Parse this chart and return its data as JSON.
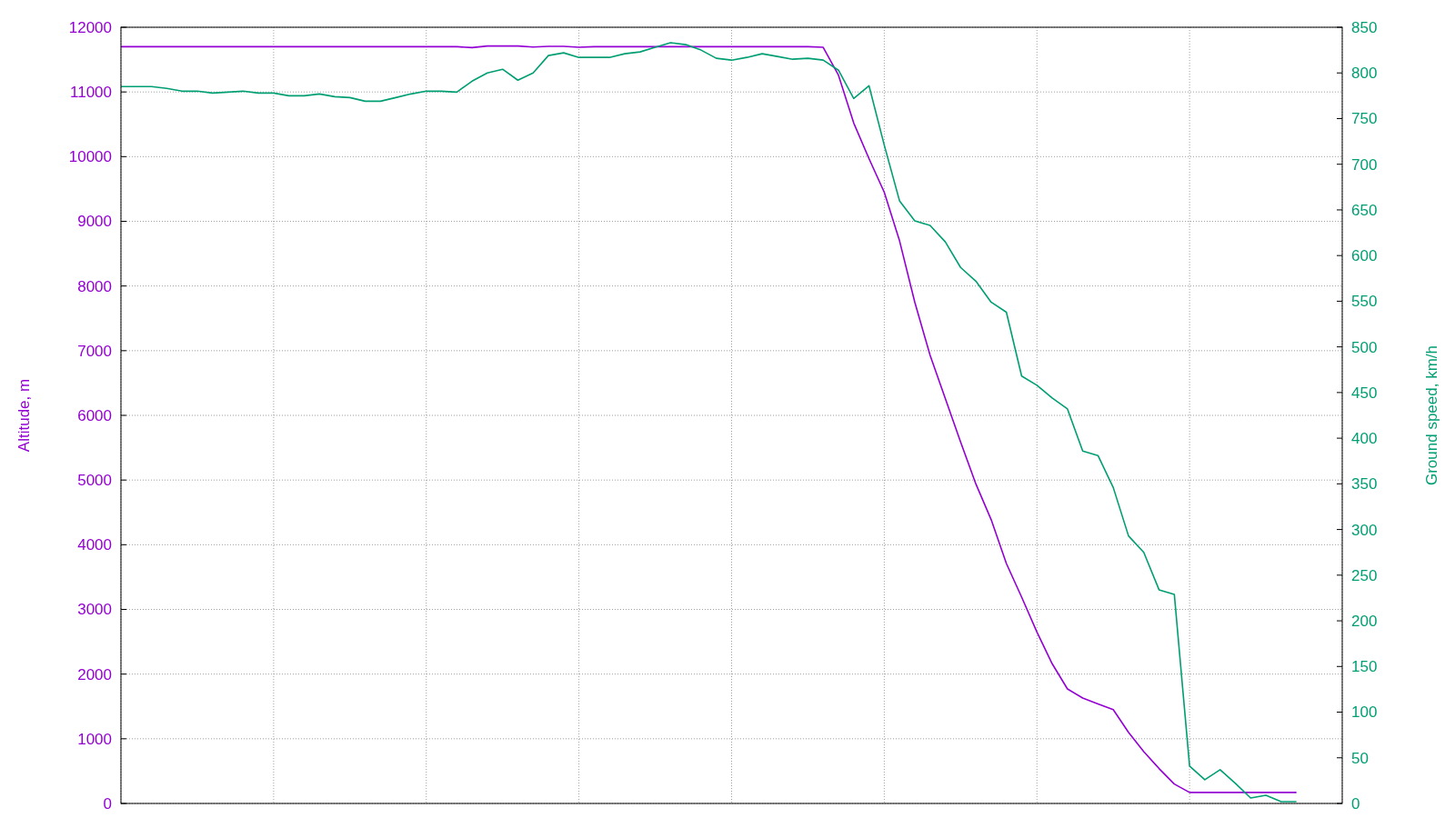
{
  "chart_data": {
    "type": "line",
    "ylabel": "Altitude, m",
    "y2label": "Ground speed, km/h",
    "grid": true,
    "categories": [
      null,
      null,
      null,
      null,
      null,
      null,
      null,
      null,
      null,
      null,
      null,
      null,
      null,
      null,
      null,
      null,
      null,
      null,
      null,
      null,
      null,
      null,
      null,
      null,
      null,
      null,
      null,
      null,
      null,
      null,
      null,
      null,
      null,
      null,
      null,
      null,
      null,
      null,
      null,
      null,
      null,
      null,
      null,
      null,
      null,
      null,
      null,
      null,
      null,
      null,
      null,
      null,
      null,
      null,
      null,
      null,
      null,
      null,
      null,
      null,
      null,
      null,
      null,
      null,
      null,
      null,
      null,
      null,
      null,
      null,
      null,
      null,
      null,
      null,
      null,
      null,
      null,
      null,
      null,
      null,
      null
    ],
    "ylim": [
      0,
      12000
    ],
    "yticks": [
      0,
      1000,
      2000,
      3000,
      4000,
      5000,
      6000,
      7000,
      8000,
      9000,
      10000,
      11000,
      12000
    ],
    "y2lim": [
      0,
      850
    ],
    "y2ticks": [
      0,
      50,
      100,
      150,
      200,
      250,
      300,
      350,
      400,
      450,
      500,
      550,
      600,
      650,
      700,
      750,
      800,
      850
    ],
    "series": [
      {
        "color": "#9400d3",
        "values": [
          11700,
          11700,
          11700,
          11700,
          11700,
          11700,
          11700,
          11700,
          11700,
          11700,
          11700,
          11700,
          11700,
          11700,
          11700,
          11700,
          11700,
          11700,
          11700,
          11700,
          11700,
          11700,
          11700,
          11685,
          11710,
          11710,
          11710,
          11695,
          11705,
          11705,
          11690,
          11700,
          11700,
          11700,
          11700,
          11700,
          11700,
          11700,
          11700,
          11700,
          11700,
          11700,
          11700,
          11700,
          11700,
          11700,
          11690,
          11260,
          10520,
          9970,
          9450,
          8700,
          7750,
          6930,
          6260,
          5590,
          4940,
          4390,
          3710,
          3190,
          2650,
          2160,
          1770,
          1630,
          1540,
          1450,
          1100,
          800,
          540,
          300,
          170,
          170,
          170,
          170,
          170,
          170,
          170,
          170,
          null,
          null,
          null
        ]
      },
      {
        "color": "#009e73",
        "axis": "y2",
        "values": [
          785,
          785,
          785,
          783,
          780,
          780,
          778,
          779,
          780,
          778,
          778,
          775,
          775,
          777,
          774,
          773,
          769,
          769,
          773,
          777,
          780,
          780,
          779,
          791,
          800,
          804,
          792,
          800,
          819,
          822,
          817,
          817,
          817,
          821,
          823,
          828,
          833,
          831,
          825,
          816,
          814,
          817,
          821,
          818,
          815,
          816,
          814,
          803,
          772,
          786,
          721,
          660,
          638,
          633,
          615,
          587,
          572,
          549,
          538,
          468,
          458,
          444,
          432,
          386,
          381,
          346,
          293,
          275,
          234,
          229,
          41,
          26,
          37,
          22,
          6,
          9,
          2,
          2,
          null,
          null,
          null
        ]
      }
    ]
  }
}
